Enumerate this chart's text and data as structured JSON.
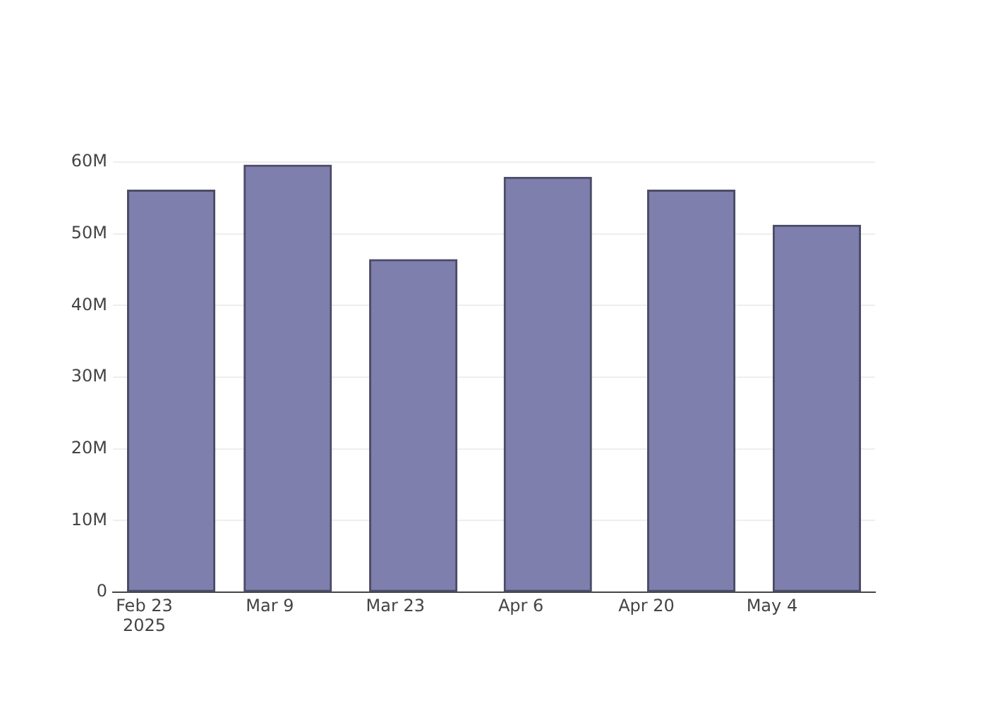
{
  "chart_data": {
    "type": "bar",
    "x": [
      "2025-02-26",
      "2025-03-11",
      "2025-03-25",
      "2025-04-09",
      "2025-04-25",
      "2025-05-09"
    ],
    "values": [
      56100000,
      59600000,
      46400000,
      57900000,
      56100000,
      51200000
    ],
    "color": "#7f7fae",
    "xlim": [
      "2025-02-19T12:00",
      "2025-05-15T12:00"
    ],
    "xticks": [
      {
        "value": "2025-02-23",
        "label": "Feb 23\n2025"
      },
      {
        "value": "2025-03-09",
        "label": "Mar 9"
      },
      {
        "value": "2025-03-23",
        "label": "Mar 23"
      },
      {
        "value": "2025-04-06",
        "label": "Apr 6"
      },
      {
        "value": "2025-04-20",
        "label": "Apr 20"
      },
      {
        "value": "2025-05-04",
        "label": "May 4"
      }
    ],
    "ylim": [
      0,
      60000000
    ],
    "yticks": [
      {
        "value": 0,
        "label": "0"
      },
      {
        "value": 10000000,
        "label": "10M"
      },
      {
        "value": 20000000,
        "label": "20M"
      },
      {
        "value": 30000000,
        "label": "30M"
      },
      {
        "value": 40000000,
        "label": "40M"
      },
      {
        "value": 50000000,
        "label": "50M"
      },
      {
        "value": 60000000,
        "label": "60M"
      }
    ],
    "grid": "y",
    "legend": false
  }
}
